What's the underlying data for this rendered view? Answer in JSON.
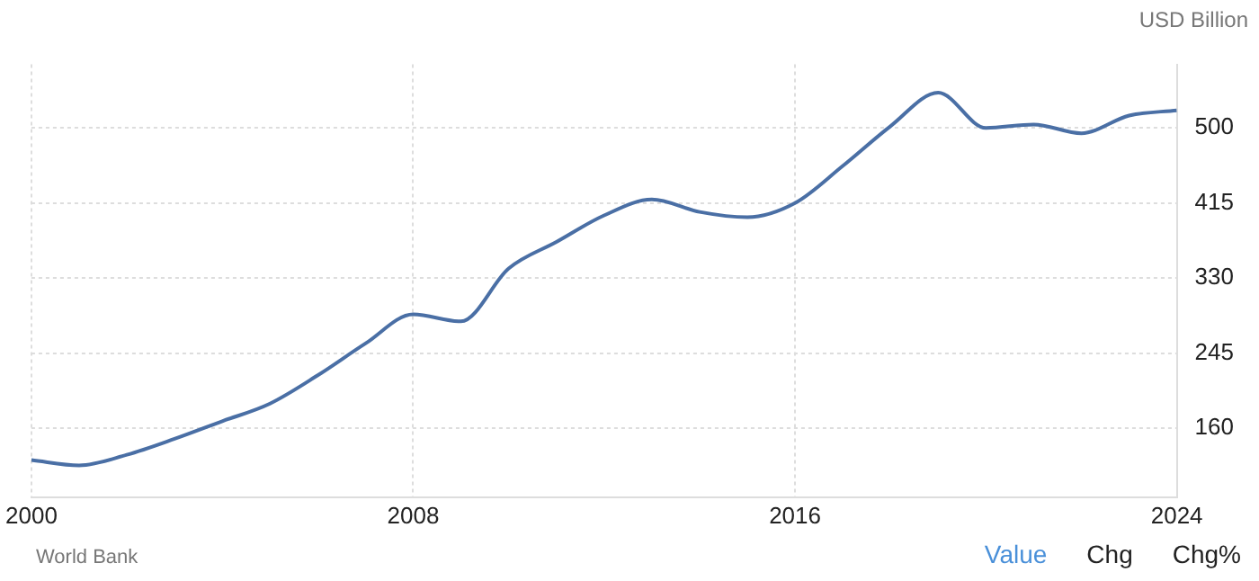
{
  "chart_data": {
    "type": "line",
    "ylabel": "USD Billion",
    "annotations": [
      "World Bank",
      "Value",
      "Chg",
      "Chg%"
    ],
    "x": [
      2000,
      2001,
      2002,
      2003,
      2004,
      2005,
      2006,
      2007,
      2008,
      2009,
      2010,
      2011,
      2012,
      2013,
      2014,
      2015,
      2016,
      2017,
      2018,
      2019,
      2020,
      2021,
      2022,
      2023,
      2024
    ],
    "series": [
      {
        "color": "#4a6fa5",
        "values": [
          124,
          118,
          130,
          148,
          168,
          188,
          220,
          256,
          289,
          281,
          341,
          371,
          401,
          419,
          405,
          399,
          415,
          457,
          502,
          540,
          500,
          504,
          494,
          514,
          520
        ]
      }
    ],
    "xlim": [
      2000,
      2024
    ],
    "xticks": [
      2000,
      2008,
      2016,
      2024
    ],
    "ylim": [
      82,
      572
    ],
    "yticks": [
      160,
      245,
      330,
      415,
      500
    ],
    "grid": true,
    "legend": false,
    "marker": "none",
    "line_style": "solid"
  }
}
